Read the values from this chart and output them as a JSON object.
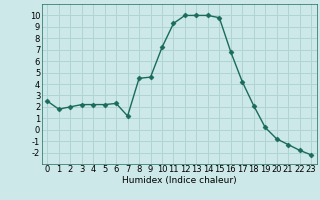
{
  "x": [
    0,
    1,
    2,
    3,
    4,
    5,
    6,
    7,
    8,
    9,
    10,
    11,
    12,
    13,
    14,
    15,
    16,
    17,
    18,
    19,
    20,
    21,
    22,
    23
  ],
  "y": [
    2.5,
    1.8,
    2.0,
    2.2,
    2.2,
    2.2,
    2.3,
    1.2,
    4.5,
    4.6,
    7.2,
    9.3,
    10.0,
    10.0,
    10.0,
    9.8,
    6.8,
    4.2,
    2.1,
    0.2,
    -0.8,
    -1.3,
    -1.8,
    -2.2
  ],
  "line_color": "#1a6b5a",
  "marker": "D",
  "marker_size": 2.5,
  "bg_color": "#cce8e8",
  "grid_color": "#b0d4d4",
  "xlabel": "Humidex (Indice chaleur)",
  "xlim": [
    -0.5,
    23.5
  ],
  "ylim": [
    -3,
    11
  ],
  "yticks": [
    -2,
    -1,
    0,
    1,
    2,
    3,
    4,
    5,
    6,
    7,
    8,
    9,
    10
  ],
  "xticks": [
    0,
    1,
    2,
    3,
    4,
    5,
    6,
    7,
    8,
    9,
    10,
    11,
    12,
    13,
    14,
    15,
    16,
    17,
    18,
    19,
    20,
    21,
    22,
    23
  ],
  "xlabel_fontsize": 6.5,
  "tick_fontsize": 6.0,
  "linewidth": 1.0
}
